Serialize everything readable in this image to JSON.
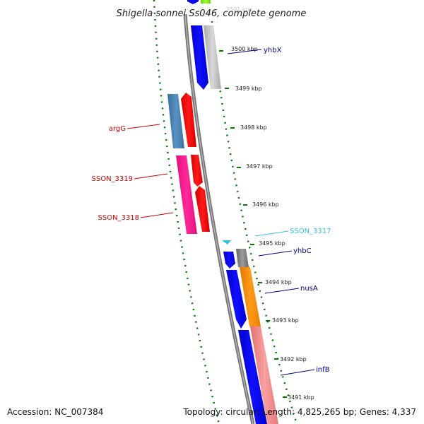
{
  "title": "Shigella sonnei Ss046, complete genome",
  "footer": {
    "accession": "Accession: NC_007384",
    "stats": "Topology: circular; Length: 4,825,265 bp; Genes: 4,337"
  },
  "ticks": [
    "3501 kbp",
    "3500 kbp",
    "3499 kbp",
    "3498 kbp",
    "3497 kbp",
    "3496 kbp",
    "3495 kbp",
    "3494 kbp",
    "3493 kbp",
    "3492 kbp",
    "3491 kbp"
  ],
  "genes": [
    {
      "name": "yhbX",
      "color": "#00008b"
    },
    {
      "name": "argG",
      "color": "#cc0000"
    },
    {
      "name": "SSON_3319",
      "color": "#cc0000"
    },
    {
      "name": "SSON_3318",
      "color": "#cc0000"
    },
    {
      "name": "SSON_3317",
      "color": "#33c0e0"
    },
    {
      "name": "yhbC",
      "color": "#00008b"
    },
    {
      "name": "nusA",
      "color": "#00008b"
    },
    {
      "name": "infB",
      "color": "#00008b"
    }
  ],
  "colors": {
    "backbone": "#808080",
    "tick_ring": "#007a00",
    "forward_cds": "#0000ff",
    "reverse_cds": "#ff0000",
    "pink_cds": "#ff1493",
    "steelblue_cds": "#4682b4",
    "orange_cds": "#ff8c00",
    "salmon_cds": "#f08080",
    "gray_cds": "#c0c0c0",
    "dark_gray_cds": "#808080",
    "green_cds": "#7cfc00",
    "trna": "#33c0e0"
  }
}
